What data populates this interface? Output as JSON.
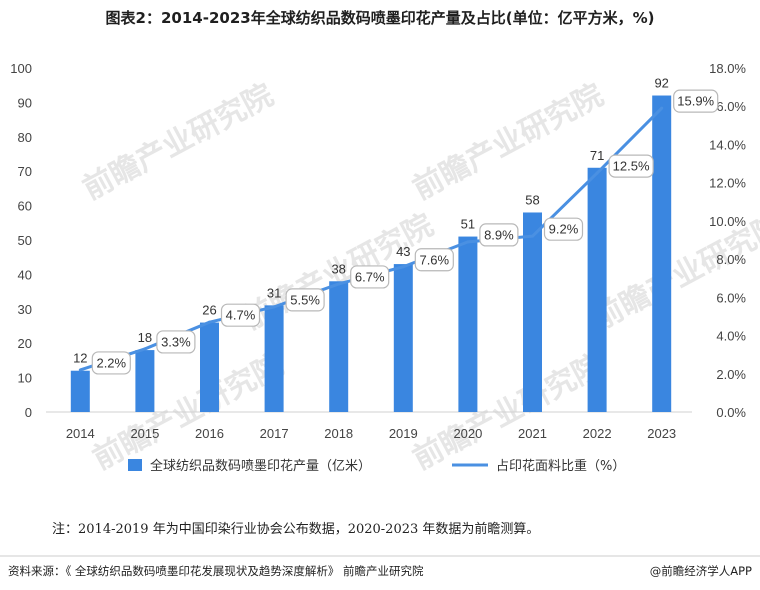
{
  "title": "图表2：2014-2023年全球纺织品数码喷墨印花产量及占比(单位：亿平方米，%)",
  "chart_data": {
    "type": "bar",
    "categories": [
      "2014",
      "2015",
      "2016",
      "2017",
      "2018",
      "2019",
      "2020",
      "2021",
      "2022",
      "2023"
    ],
    "series": [
      {
        "name": "全球纺织品数码喷墨印花产量（亿米）",
        "type": "bar",
        "axis": "left",
        "values": [
          12,
          18,
          26,
          31,
          38,
          43,
          51,
          58,
          71,
          92
        ],
        "labels": [
          "12",
          "18",
          "26",
          "31",
          "38",
          "43",
          "51",
          "58",
          "71",
          "92"
        ],
        "color": "#3a86e0"
      },
      {
        "name": "占印花面料比重（%）",
        "type": "line",
        "axis": "right",
        "values": [
          2.2,
          3.3,
          4.7,
          5.5,
          6.7,
          7.6,
          8.9,
          9.2,
          12.5,
          15.9
        ],
        "labels": [
          "2.2%",
          "3.3%",
          "4.7%",
          "5.5%",
          "6.7%",
          "7.6%",
          "8.9%",
          "9.2%",
          "12.5%",
          "15.9%"
        ],
        "color": "#4a90e2"
      }
    ],
    "left_axis": {
      "ylim": [
        0,
        100
      ],
      "ticks": [
        "0",
        "10",
        "20",
        "30",
        "40",
        "50",
        "60",
        "70",
        "80",
        "90",
        "100"
      ]
    },
    "right_axis": {
      "ylim": [
        0,
        18
      ],
      "ticks": [
        "0.0%",
        "2.0%",
        "4.0%",
        "6.0%",
        "8.0%",
        "10.0%",
        "12.0%",
        "14.0%",
        "16.0%",
        "18.0%"
      ]
    },
    "legend_position": "bottom",
    "grid": false
  },
  "note": "注：2014-2019 年为中国印染行业协会公布数据，2020-2023 年数据为前瞻测算。",
  "footer": {
    "source": "资料来源：《 全球纺织品数码喷墨印花发展现状及趋势深度解析》 前瞻产业研究院",
    "brand": "@前瞻经济学人APP"
  },
  "watermark": "前瞻产业研究院",
  "colors": {
    "bar": "#3a86e0",
    "line": "#4a90e2",
    "label_border": "#b8b8b8"
  }
}
